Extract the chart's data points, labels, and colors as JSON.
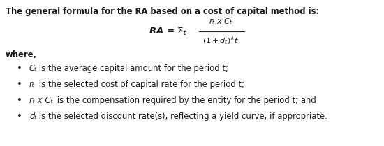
{
  "bg_color": "#ffffff",
  "text_color": "#1a1a1a",
  "header": "The general formula for the RA based on a cost of capital method is:",
  "where_text": "where,",
  "bullets": [
    [
      "Cₜ",
      " is the average capital amount for the period t;"
    ],
    [
      "rₜ",
      " is the selected cost of capital rate for the period t;"
    ],
    [
      "rₜ x Cₜ",
      " is the compensation required by the entity for the period t; and"
    ],
    [
      "dₜ",
      " is the selected discount rate(s), reflecting a yield curve, if appropriate."
    ]
  ],
  "figsize": [
    5.5,
    2.1
  ],
  "dpi": 100,
  "header_fontsize": 8.4,
  "body_fontsize": 8.4,
  "formula_fontsize": 9.5
}
